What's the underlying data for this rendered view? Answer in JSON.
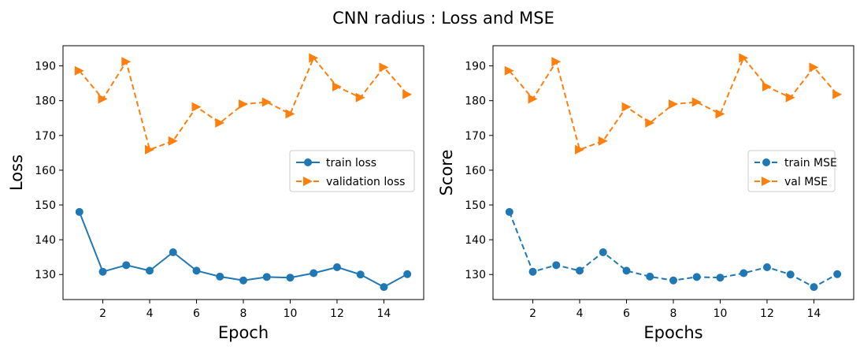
{
  "figure": {
    "suptitle": "CNN radius : Loss and MSE"
  },
  "chart_data": [
    {
      "type": "line",
      "xlabel": "Epoch",
      "ylabel": "Loss",
      "xlim": [
        0.3,
        15.7
      ],
      "ylim": [
        122.8,
        195.8
      ],
      "xticks": [
        2,
        4,
        6,
        8,
        10,
        12,
        14
      ],
      "yticks": [
        130,
        140,
        150,
        160,
        170,
        180,
        190
      ],
      "grid": false,
      "legend": "center-right",
      "x": [
        1,
        2,
        3,
        4,
        5,
        6,
        7,
        8,
        9,
        10,
        11,
        12,
        13,
        14,
        15
      ],
      "series": [
        {
          "name": "train loss",
          "color": "#1f77b4",
          "linestyle": "solid",
          "marker": "circle",
          "values": [
            148.0,
            130.8,
            132.7,
            131.1,
            136.4,
            131.1,
            129.4,
            128.3,
            129.3,
            129.1,
            130.4,
            132.1,
            130.0,
            126.4,
            130.1
          ]
        },
        {
          "name": "validation loss",
          "color": "#ff7f0e",
          "linestyle": "dashed",
          "marker": "triangle-right",
          "values": [
            188.6,
            180.5,
            191.2,
            165.9,
            168.4,
            178.2,
            173.6,
            179.0,
            179.6,
            176.2,
            192.3,
            184.0,
            180.9,
            189.6,
            181.8
          ]
        }
      ]
    },
    {
      "type": "line",
      "xlabel": "Epochs",
      "ylabel": "Score",
      "xlim": [
        0.3,
        15.7
      ],
      "ylim": [
        122.8,
        195.8
      ],
      "xticks": [
        2,
        4,
        6,
        8,
        10,
        12,
        14
      ],
      "yticks": [
        130,
        140,
        150,
        160,
        170,
        180,
        190
      ],
      "grid": false,
      "legend": "center-right",
      "x": [
        1,
        2,
        3,
        4,
        5,
        6,
        7,
        8,
        9,
        10,
        11,
        12,
        13,
        14,
        15
      ],
      "series": [
        {
          "name": "train MSE",
          "color": "#1f77b4",
          "linestyle": "dashed",
          "marker": "circle",
          "values": [
            148.0,
            130.8,
            132.7,
            131.1,
            136.4,
            131.1,
            129.4,
            128.3,
            129.3,
            129.1,
            130.4,
            132.1,
            130.0,
            126.4,
            130.1
          ]
        },
        {
          "name": "val MSE",
          "color": "#ff7f0e",
          "linestyle": "dashed",
          "marker": "triangle-right",
          "values": [
            188.6,
            180.5,
            191.2,
            165.9,
            168.4,
            178.2,
            173.6,
            179.0,
            179.6,
            176.2,
            192.3,
            184.0,
            180.9,
            189.6,
            181.8
          ]
        }
      ]
    }
  ]
}
